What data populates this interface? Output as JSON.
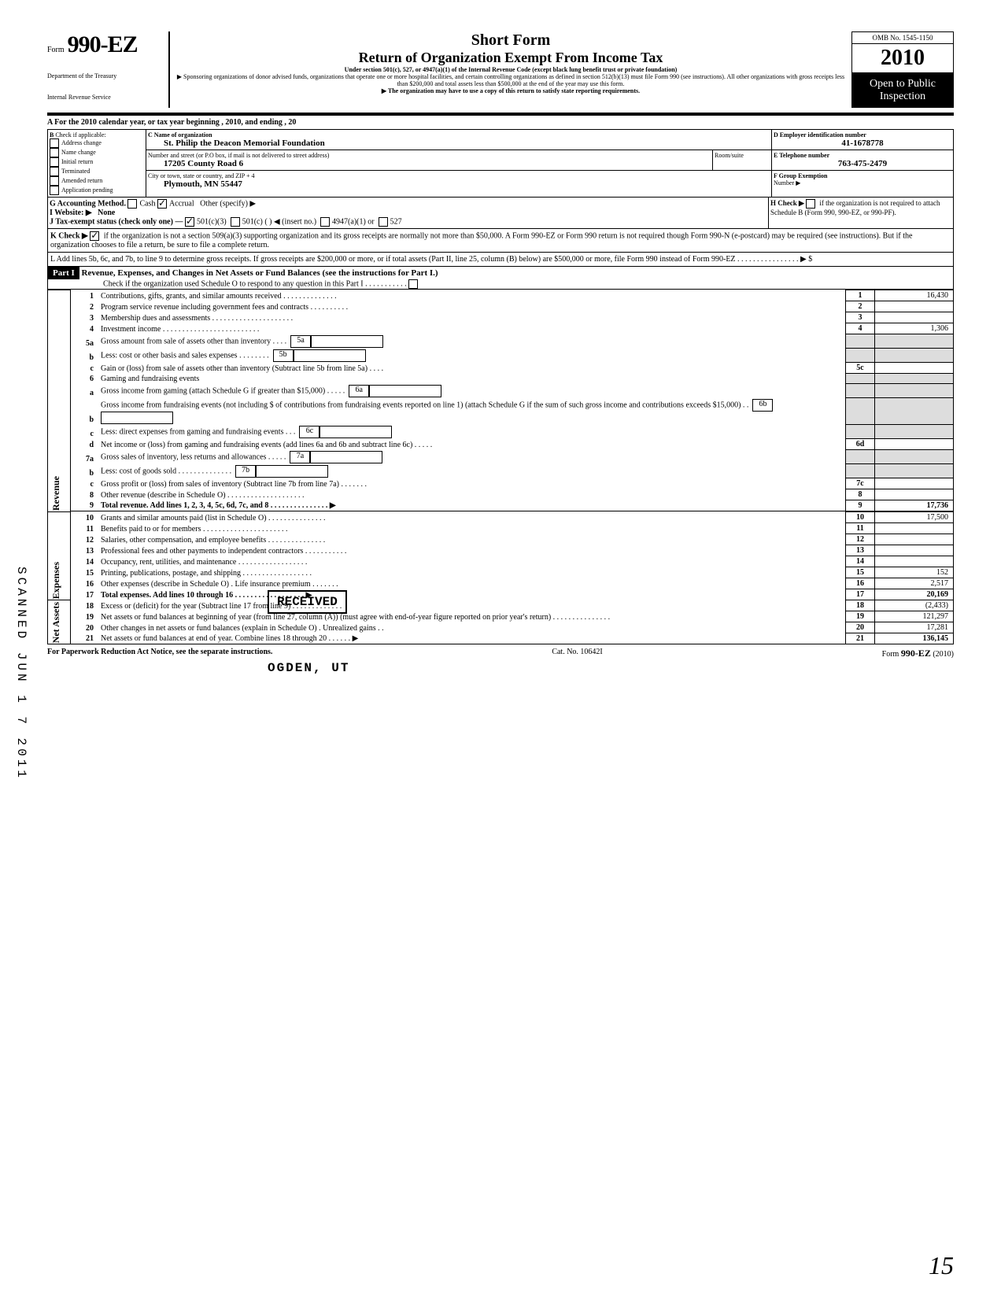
{
  "header": {
    "form_label": "Form",
    "form_number": "990-EZ",
    "dept1": "Department of the Treasury",
    "dept2": "Internal Revenue Service",
    "title1": "Short Form",
    "title2": "Return of Organization Exempt From Income Tax",
    "subtitle": "Under section 501(c), 527, or 4947(a)(1) of the Internal Revenue Code (except black lung benefit trust or private foundation)",
    "note1": "▶ Sponsoring organizations of donor advised funds, organizations that operate one or more hospital facilities, and certain controlling organizations as defined in section 512(b)(13) must file Form 990 (see instructions). All other organizations with gross receipts less than $200,000 and total assets less than $500,000 at the end of the year may use this form.",
    "note2": "▶ The organization may have to use a copy of this return to satisfy state reporting requirements.",
    "omb": "OMB No. 1545-1150",
    "year_prefix": "20",
    "year_bold": "10",
    "open1": "Open to Public",
    "open2": "Inspection"
  },
  "section_a": "A  For the 2010 calendar year, or tax year beginning                                                                              , 2010, and ending                                                       , 20",
  "b_label": "B",
  "b_text": "Check if applicable:",
  "b_items": [
    "Address change",
    "Name change",
    "Initial return",
    "Terminated",
    "Amended return",
    "Application pending"
  ],
  "c_label": "C  Name of organization",
  "c_org": "St. Philip the Deacon Memorial Foundation",
  "c_addr_label": "Number and street (or P.O  box, if mail is not delivered to street address)",
  "c_room": "Room/suite",
  "c_addr": "17205 County Road 6",
  "c_city_label": "City or town, state or country, and ZIP + 4",
  "c_city": "Plymouth, MN 55447",
  "d_label": "D Employer identification number",
  "d_ein": "41-1678778",
  "e_label": "E Telephone number",
  "e_phone": "763-475-2479",
  "f_label": "F Group Exemption",
  "f_label2": "Number  ▶",
  "g_label": "G  Accounting Method.",
  "g_cash": "Cash",
  "g_accrual": "Accrual",
  "g_other": "Other (specify) ▶",
  "h_label": "H  Check ▶",
  "h_text": "if the organization is not required to attach Schedule B (Form 990, 990-EZ, or 990-PF).",
  "i_label": "I   Website: ▶",
  "i_val": "None",
  "j_label": "J  Tax-exempt status (check only one) —",
  "j_501c3": "501(c)(3)",
  "j_501c": "501(c) (          ) ◀ (insert no.)",
  "j_4947": "4947(a)(1) or",
  "j_527": "527",
  "k_label": "K  Check ▶",
  "k_text": "if the organization is not a section 509(a)(3) supporting organization and its gross receipts are normally not more than $50,000.  A Form 990-EZ or Form 990 return is not required though Form 990-N (e-postcard) may be required (see instructions). But if the organization chooses to file a return, be sure to file a complete return.",
  "l_text": "L  Add lines 5b, 6c, and 7b, to line 9 to determine gross receipts. If gross receipts are $200,000 or more, or if total assets (Part II, line  25, column (B) below) are $500,000 or more, file Form 990 instead of Form 990-EZ   .    .    .    .    .    .    .    .    .    .    .    .    .    .    .    .    ▶  $",
  "part1_label": "Part I",
  "part1_title": "Revenue, Expenses, and Changes in Net Assets or Fund Balances (see the instructions for Part I.)",
  "part1_check": "Check if the organization used Schedule O to respond to any question in this Part I  .    .    .    .    .    .    .    .    .    .    .",
  "side_rev": "Revenue",
  "side_exp": "Expenses",
  "side_net": "Net Assets",
  "lines": {
    "l1": {
      "n": "1",
      "t": "Contributions, gifts, grants, and similar amounts received .    .    .    .    .    .    .    .    .    .    .    .    .    .",
      "box": "1",
      "amt": "16,430"
    },
    "l2": {
      "n": "2",
      "t": "Program service revenue including government fees and contracts     .    .    .    .    .    .    .    .    .    .",
      "box": "2",
      "amt": ""
    },
    "l3": {
      "n": "3",
      "t": "Membership dues and assessments .    .    .    .    .    .    .    .    .    .    .    .    .    .    .    .    .    .    .    .    .",
      "box": "3",
      "amt": ""
    },
    "l4": {
      "n": "4",
      "t": "Investment income     .    .    .    .    .    .    .    .    .    .    .    .    .    .    .    .    .    .    .    .    .    .    .    .    .",
      "box": "4",
      "amt": "1,306"
    },
    "l5a": {
      "n": "5a",
      "t": "Gross amount from sale of assets other than inventory     .    .    .    .",
      "sb": "5a"
    },
    "l5b": {
      "n": "b",
      "t": "Less: cost or other basis and sales expenses .    .    .    .    .    .    .    .",
      "sb": "5b"
    },
    "l5c": {
      "n": "c",
      "t": "Gain or (loss) from sale of assets other than inventory (Subtract line 5b from line 5a)  .    .    .    .",
      "box": "5c",
      "amt": ""
    },
    "l6": {
      "n": "6",
      "t": "Gaming and fundraising events"
    },
    "l6a": {
      "n": "a",
      "t": "Gross income from gaming (attach Schedule G if greater than $15,000) .    .    .    .    .",
      "sb": "6a"
    },
    "l6b": {
      "n": "b",
      "t": "Gross income from fundraising events (not including $                of contributions from fundraising events reported on line 1) (attach Schedule G if the sum of such gross income and contributions exceeds $15,000)  .    .",
      "sb": "6b"
    },
    "l6c": {
      "n": "c",
      "t": "Less: direct expenses from gaming and fundraising events    .    .    .",
      "sb": "6c"
    },
    "l6d": {
      "n": "d",
      "t": "Net income or (loss) from gaming and fundraising events (add lines 6a and 6b and subtract line 6c)     .    .    .    .    .",
      "box": "6d",
      "amt": ""
    },
    "l7a": {
      "n": "7a",
      "t": "Gross sales of inventory, less returns and allowances  .    .    .    .    .",
      "sb": "7a"
    },
    "l7b": {
      "n": "b",
      "t": "Less: cost of goods sold     .    .    .    .    .    .    .    .    .    .    .    .    .    .",
      "sb": "7b"
    },
    "l7c": {
      "n": "c",
      "t": "Gross profit or (loss) from sales of inventory (Subtract line 7b from line 7a)  .    .    .    .    .    .    .",
      "box": "7c",
      "amt": ""
    },
    "l8": {
      "n": "8",
      "t": "Other revenue (describe in Schedule O) .    .    .    .    .    .    .    .    .    .    .    .    .    .    .    .    .    .    .    .",
      "box": "8",
      "amt": ""
    },
    "l9": {
      "n": "9",
      "t": "Total revenue. Add lines 1, 2, 3, 4, 5c, 6d, 7c, and 8   .    .    .    .    .    .    .    .    .    .    .    .    .    .    .  ▶",
      "box": "9",
      "amt": "17,736"
    },
    "l10": {
      "n": "10",
      "t": "Grants and similar amounts paid (list in Schedule O)    .    .    .    .    .    .    .    .    .    .    .    .    .    .    .",
      "box": "10",
      "amt": "17,500"
    },
    "l11": {
      "n": "11",
      "t": "Benefits paid to or for members    .    .    .    .    .    .    .    .    .    .    .    .    .    .    .    .    .    .    .    .    .    .",
      "box": "11",
      "amt": ""
    },
    "l12": {
      "n": "12",
      "t": "Salaries, other compensation, and employee benefits  .    .    .    .    .    .    .    .    .    .    .    .    .    .    .",
      "box": "12",
      "amt": ""
    },
    "l13": {
      "n": "13",
      "t": "Professional fees and other payments to independent contractors .    .    .    .    .    .    .    .    .    .    .",
      "box": "13",
      "amt": ""
    },
    "l14": {
      "n": "14",
      "t": "Occupancy, rent, utilities, and maintenance    .    .    .    .    .    .    .    .    .    .    .    .    .    .    .    .    .    .",
      "box": "14",
      "amt": ""
    },
    "l15": {
      "n": "15",
      "t": "Printing, publications, postage, and shipping .    .    .    .    .    .    .    .    .    .    .    .    .    .    .    .    .    .",
      "box": "15",
      "amt": "152"
    },
    "l16": {
      "n": "16",
      "t": "Other expenses (describe in Schedule O)   .    Life insurance premium    .    .    .    .    .    .    .",
      "box": "16",
      "amt": "2,517"
    },
    "l17": {
      "n": "17",
      "t": "Total expenses. Add lines 10 through 16  .    .    .    .    .    .    .    .    .    .    .    .    .    .    .    .    .    .  ▶",
      "box": "17",
      "amt": "20,169"
    },
    "l18": {
      "n": "18",
      "t": "Excess or (deficit) for the year (Subtract line 17 from line 9)    .    .    .    .    .    .    .    .    .    .    .    .    .",
      "box": "18",
      "amt": "(2,433)"
    },
    "l19": {
      "n": "19",
      "t": "Net assets or fund balances at beginning of year (from line 27, column (A)) (must agree with end-of-year figure reported on prior year's return)     .    .    .    .    .    .    .    .    .    .    .    .    .    .    .",
      "box": "19",
      "amt": "121,297"
    },
    "l20": {
      "n": "20",
      "t": "Other changes in net assets or fund balances (explain in Schedule O) . Unrealized gains  .    .",
      "box": "20",
      "amt": "17,281"
    },
    "l21": {
      "n": "21",
      "t": "Net assets or fund balances at end of year. Combine lines 18 through 20     .    .    .    .    .    .  ▶",
      "box": "21",
      "amt": "136,145"
    }
  },
  "footer": {
    "left": "For Paperwork Reduction Act Notice, see the separate instructions.",
    "mid": "Cat. No. 10642I",
    "right": "Form 990-EZ  (2010)"
  },
  "stamps": {
    "received": "RECEIVED",
    "ogden": "OGDEN, UT",
    "scanned": "SCANNED JUN 1 7 2011"
  },
  "page_corner": "15"
}
